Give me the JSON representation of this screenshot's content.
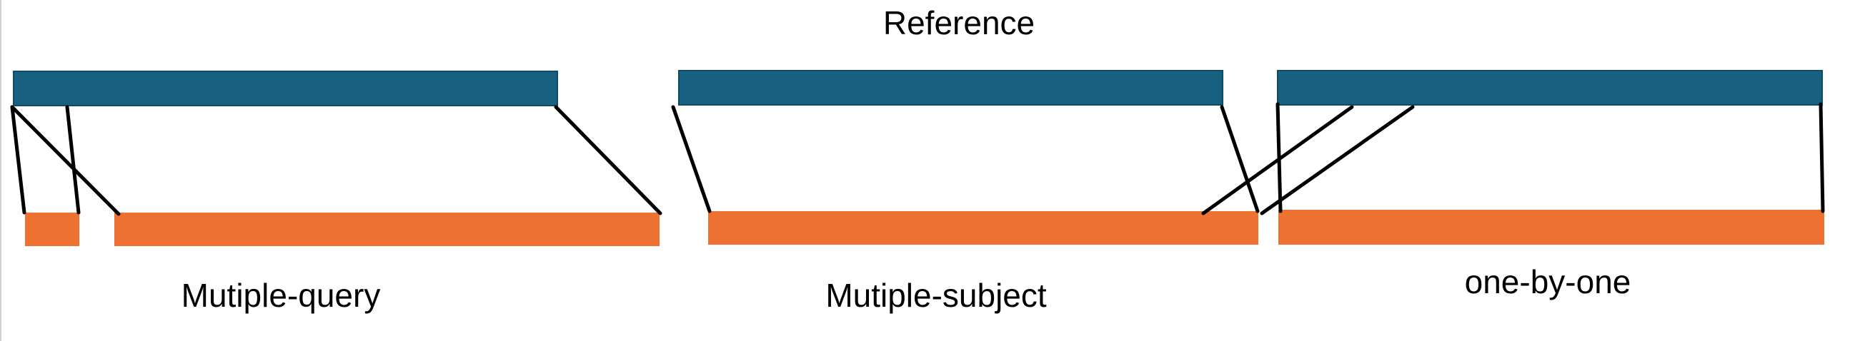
{
  "diagram": {
    "title": "Reference",
    "panels": [
      {
        "label": "Mutiple-query"
      },
      {
        "label": "Mutiple-subject"
      },
      {
        "label": "one-by-one"
      }
    ]
  },
  "colors": {
    "reference": "#17607f",
    "query": "#ed7231",
    "link": "#000000"
  }
}
